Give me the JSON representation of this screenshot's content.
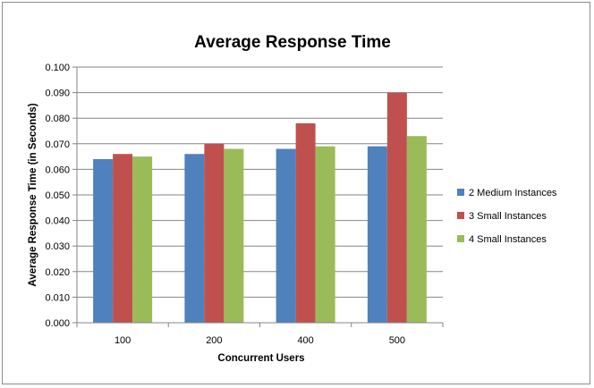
{
  "chart_data": {
    "type": "bar",
    "title": "Average Response Time",
    "xlabel": "Concurrent Users",
    "ylabel": "Average Response Time (in Seconds)",
    "categories": [
      "100",
      "200",
      "400",
      "500"
    ],
    "ylim": [
      0,
      0.1
    ],
    "yticks": [
      "0.000",
      "0.010",
      "0.020",
      "0.030",
      "0.040",
      "0.050",
      "0.060",
      "0.070",
      "0.080",
      "0.090",
      "0.100"
    ],
    "grid": true,
    "legend_position": "right",
    "series": [
      {
        "name": "2 Medium Instances",
        "color": "#4f81bd",
        "values": [
          0.064,
          0.066,
          0.068,
          0.069
        ]
      },
      {
        "name": "3 Small Instances",
        "color": "#c0504d",
        "values": [
          0.066,
          0.07,
          0.078,
          0.09
        ]
      },
      {
        "name": "4 Small Instances",
        "color": "#9bbb59",
        "values": [
          0.065,
          0.068,
          0.069,
          0.073
        ]
      }
    ]
  }
}
